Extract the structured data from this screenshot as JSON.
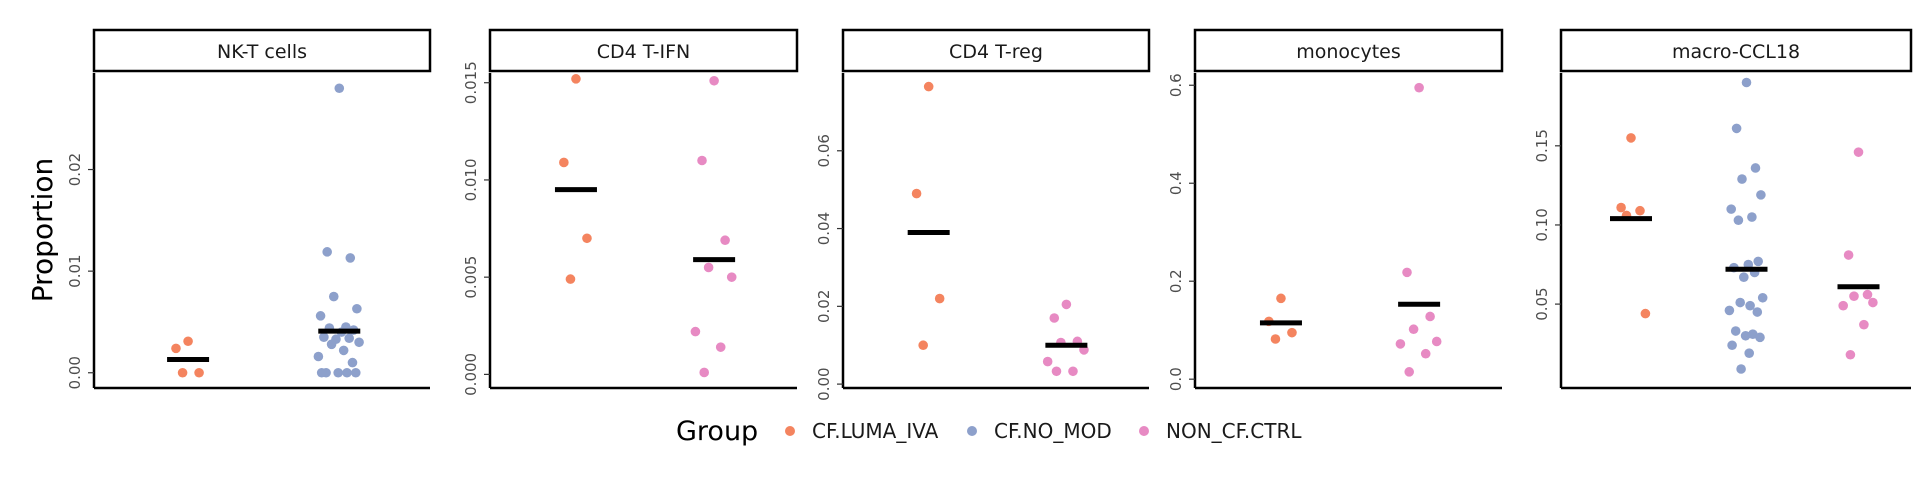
{
  "chart_data": {
    "type": "scatter",
    "ylabel": "Proportion",
    "legend": {
      "title": "Group",
      "position": "bottom",
      "entries": [
        {
          "name": "CF.LUMA_IVA",
          "color": "#F4845F"
        },
        {
          "name": "CF.NO_MOD",
          "color": "#8DA0CB"
        },
        {
          "name": "NON_CF.CTRL",
          "color": "#E78AC3"
        }
      ]
    },
    "panels": [
      {
        "title": "NK-T cells",
        "ylim": [
          -0.0015,
          0.0295
        ],
        "yticks": [
          0,
          0.01,
          0.02
        ],
        "ytick_labels": [
          "0.00",
          "0.01",
          "0.02"
        ],
        "groups": [
          {
            "name": "CF.LUMA_IVA",
            "slot": 0,
            "mean": 0.0013,
            "points": [
              0.0031,
              0.0024,
              0.0,
              0.0
            ]
          },
          {
            "name": "CF.NO_MOD",
            "slot": 1,
            "mean": 0.0041,
            "points": [
              0.028,
              0.0119,
              0.0113,
              0.0075,
              0.0063,
              0.0056,
              0.0045,
              0.0044,
              0.0042,
              0.004,
              0.0035,
              0.0034,
              0.0033,
              0.003,
              0.0028,
              0.0022,
              0.0016,
              0.001,
              0.0,
              0.0,
              0.0,
              0.0,
              0.0
            ]
          }
        ]
      },
      {
        "title": "CD4 T-IFN",
        "ylim": [
          -0.0007,
          0.0155
        ],
        "yticks": [
          0,
          0.005,
          0.01,
          0.015
        ],
        "ytick_labels": [
          "0.000",
          "0.005",
          "0.010",
          "0.015"
        ],
        "groups": [
          {
            "name": "CF.LUMA_IVA",
            "slot": 0,
            "mean": 0.0095,
            "points": [
              0.0152,
              0.0109,
              0.007,
              0.0049
            ]
          },
          {
            "name": "NON_CF.CTRL",
            "slot": 1,
            "mean": 0.0059,
            "points": [
              0.0151,
              0.011,
              0.0069,
              0.0055,
              0.005,
              0.0022,
              0.0014,
              0.0001
            ]
          }
        ]
      },
      {
        "title": "CD4 T-reg",
        "ylim": [
          -0.001,
          0.08
        ],
        "yticks": [
          0,
          0.02,
          0.04,
          0.06
        ],
        "ytick_labels": [
          "0.00",
          "0.02",
          "0.04",
          "0.06"
        ],
        "groups": [
          {
            "name": "CF.LUMA_IVA",
            "slot": 0,
            "mean": 0.039,
            "points": [
              0.0765,
              0.049,
              0.022,
              0.01
            ]
          },
          {
            "name": "NON_CF.CTRL",
            "slot": 1,
            "mean": 0.01,
            "points": [
              0.0205,
              0.017,
              0.011,
              0.0107,
              0.0088,
              0.0058,
              0.0033,
              0.0033
            ]
          }
        ]
      },
      {
        "title": "monocytes",
        "ylim": [
          -0.018,
          0.625
        ],
        "yticks": [
          0,
          0.2,
          0.4,
          0.6
        ],
        "ytick_labels": [
          "0.0",
          "0.2",
          "0.4",
          "0.6"
        ],
        "groups": [
          {
            "name": "CF.LUMA_IVA",
            "slot": 0,
            "mean": 0.115,
            "points": [
              0.165,
              0.118,
              0.095,
              0.082
            ]
          },
          {
            "name": "NON_CF.CTRL",
            "slot": 1,
            "mean": 0.153,
            "points": [
              0.595,
              0.218,
              0.128,
              0.102,
              0.077,
              0.072,
              0.052,
              0.015
            ]
          }
        ]
      },
      {
        "title": "macro-CCL18",
        "ylim": [
          -0.003,
          0.196
        ],
        "yticks": [
          0.05,
          0.1,
          0.15
        ],
        "ytick_labels": [
          "0.05",
          "0.10",
          "0.15"
        ],
        "groups": [
          {
            "name": "CF.LUMA_IVA",
            "slot": 0,
            "mean": 0.104,
            "points": [
              0.155,
              0.111,
              0.109,
              0.106,
              0.044
            ]
          },
          {
            "name": "CF.NO_MOD",
            "slot": 1,
            "mean": 0.072,
            "points": [
              0.19,
              0.161,
              0.136,
              0.129,
              0.119,
              0.11,
              0.105,
              0.103,
              0.077,
              0.075,
              0.073,
              0.07,
              0.067,
              0.054,
              0.051,
              0.049,
              0.046,
              0.045,
              0.033,
              0.031,
              0.03,
              0.029,
              0.024,
              0.019,
              0.009
            ]
          },
          {
            "name": "NON_CF.CTRL",
            "slot": 2,
            "mean": 0.061,
            "points": [
              0.146,
              0.081,
              0.056,
              0.055,
              0.051,
              0.049,
              0.037,
              0.018
            ]
          }
        ]
      }
    ]
  }
}
